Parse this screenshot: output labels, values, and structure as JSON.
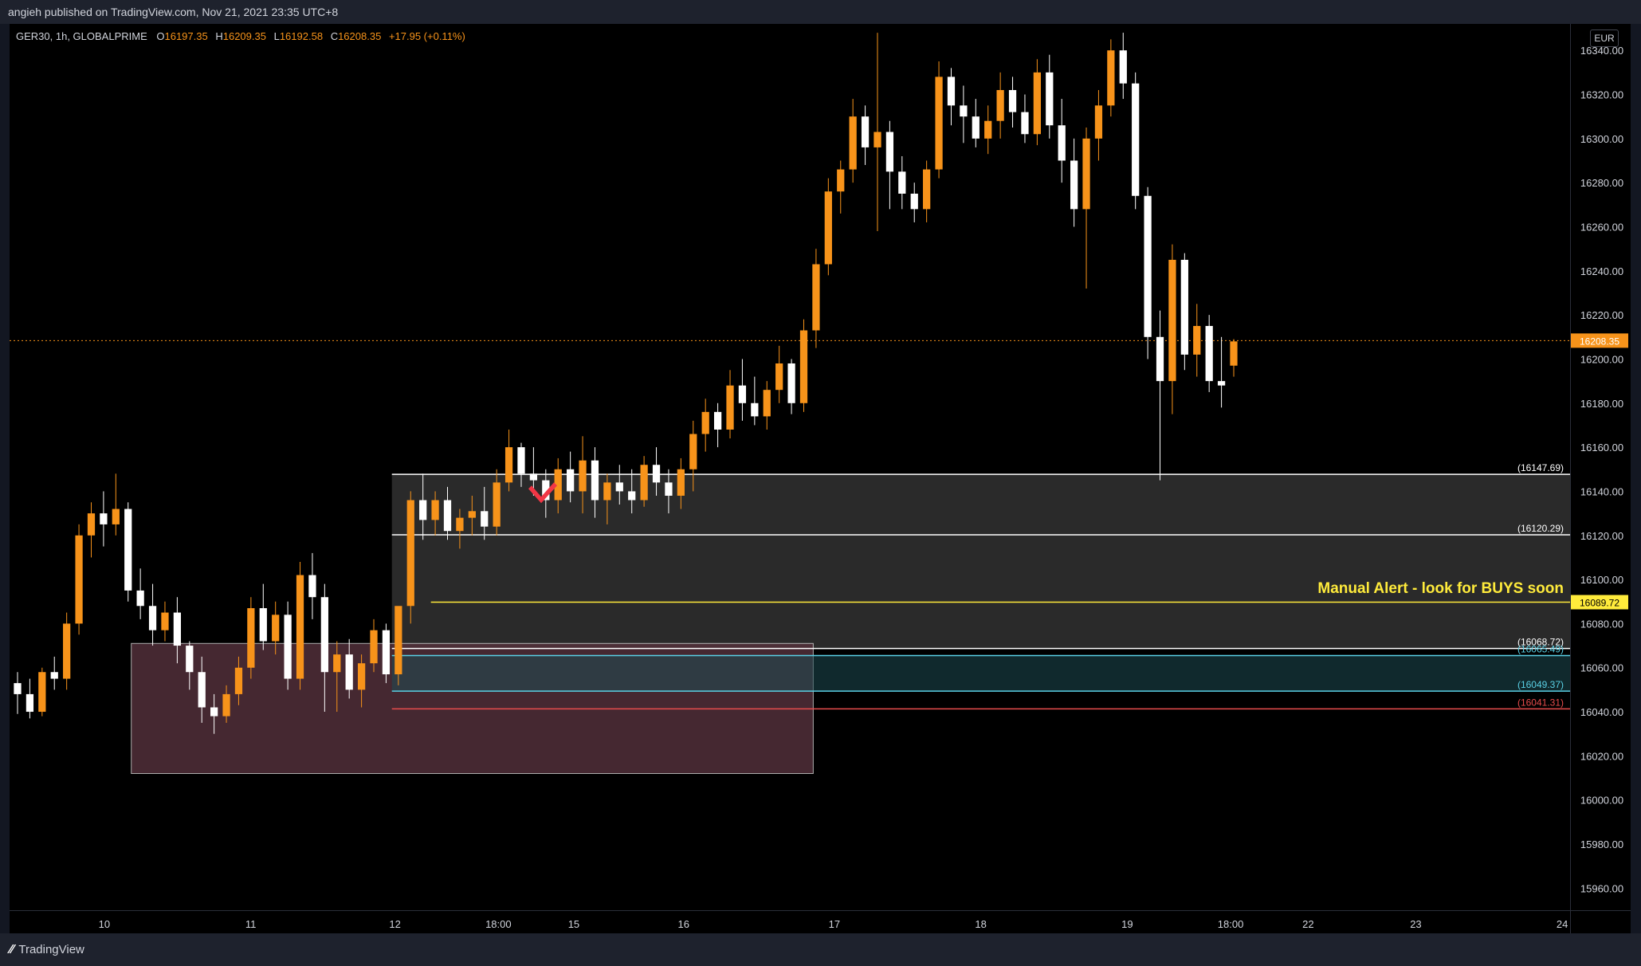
{
  "header": {
    "published": "angieh published on TradingView.com, Nov 21, 2021 23:35 UTC+8"
  },
  "legend": {
    "symbol": "GER30, 1h, GLOBALPRIME",
    "o_label": "O",
    "o_value": "16197.35",
    "h_label": "H",
    "h_value": "16209.35",
    "l_label": "L",
    "l_value": "16192.58",
    "c_label": "C",
    "c_value": "16208.35",
    "change": "+17.95 (+0.11%)"
  },
  "currency": "EUR",
  "footer": {
    "brand": "TradingView"
  },
  "colors": {
    "up": "#f7931a",
    "down": "#ffffff",
    "background": "#000000",
    "alert": "#ffeb3b",
    "support": "#5ad1e6",
    "stop": "#e84c4c"
  },
  "chart_data": {
    "type": "candlestick",
    "y_range": [
      15950,
      16352
    ],
    "y_ticks": [
      "16340.00",
      "16320.00",
      "16300.00",
      "16280.00",
      "16260.00",
      "16240.00",
      "16220.00",
      "16200.00",
      "16180.00",
      "16160.00",
      "16140.00",
      "16120.00",
      "16100.00",
      "16080.00",
      "16060.00",
      "16040.00",
      "16020.00",
      "16000.00",
      "15980.00",
      "15960.00"
    ],
    "x_ticks": [
      "10",
      "11",
      "12",
      "18:00",
      "15",
      "16",
      "17",
      "18",
      "19",
      "18:00",
      "22",
      "23",
      "24"
    ],
    "last_price": {
      "value": 16208.35,
      "label": "16208.35"
    },
    "levels": [
      {
        "value": 16147.69,
        "label": "(16147.69)",
        "color": "#ffffff"
      },
      {
        "value": 16120.29,
        "label": "(16120.29)",
        "color": "#ffffff"
      },
      {
        "value": 16089.72,
        "label": "16089.72",
        "color": "#ffeb3b"
      },
      {
        "value": 16068.72,
        "label": "(16068.72)",
        "color": "#ffffff"
      },
      {
        "value": 16065.49,
        "label": "(16065.49)",
        "color": "#5ad1e6"
      },
      {
        "value": 16049.37,
        "label": "(16049.37)",
        "color": "#5ad1e6"
      },
      {
        "value": 16041.31,
        "label": "(16041.31)",
        "color": "#e84c4c"
      }
    ],
    "zones": [
      {
        "name": "supply-zone",
        "x_from": 0.245,
        "x_to": 1.0,
        "y_from": 16068.72,
        "y_to": 16147.69,
        "color": "#2a2a2a"
      },
      {
        "name": "demand-box",
        "x_from": 0.078,
        "x_to": 0.515,
        "y_from": 16012,
        "y_to": 16071,
        "color": "#52303a"
      }
    ],
    "annotation": {
      "text": "Manual Alert - look for BUYS soon",
      "value": 16096
    },
    "candles": [
      [
        16053,
        16058,
        16039,
        16048
      ],
      [
        16048,
        16055,
        16037,
        16040
      ],
      [
        16040,
        16060,
        16038,
        16058
      ],
      [
        16058,
        16065,
        16050,
        16055
      ],
      [
        16055,
        16085,
        16050,
        16080
      ],
      [
        16080,
        16125,
        16075,
        16120
      ],
      [
        16120,
        16135,
        16110,
        16130
      ],
      [
        16130,
        16140,
        16115,
        16125
      ],
      [
        16125,
        16148,
        16120,
        16132
      ],
      [
        16132,
        16135,
        16090,
        16095
      ],
      [
        16095,
        16105,
        16082,
        16088
      ],
      [
        16088,
        16098,
        16070,
        16077
      ],
      [
        16077,
        16090,
        16072,
        16085
      ],
      [
        16085,
        16092,
        16062,
        16070
      ],
      [
        16070,
        16072,
        16050,
        16058
      ],
      [
        16058,
        16065,
        16035,
        16042
      ],
      [
        16042,
        16048,
        16030,
        16038
      ],
      [
        16038,
        16052,
        16035,
        16048
      ],
      [
        16048,
        16065,
        16043,
        16060
      ],
      [
        16060,
        16092,
        16055,
        16087
      ],
      [
        16087,
        16098,
        16068,
        16072
      ],
      [
        16072,
        16090,
        16066,
        16084
      ],
      [
        16084,
        16090,
        16050,
        16055
      ],
      [
        16055,
        16108,
        16050,
        16102
      ],
      [
        16102,
        16112,
        16082,
        16092
      ],
      [
        16092,
        16098,
        16040,
        16058
      ],
      [
        16058,
        16072,
        16040,
        16066
      ],
      [
        16066,
        16073,
        16046,
        16050
      ],
      [
        16050,
        16066,
        16042,
        16062
      ],
      [
        16062,
        16082,
        16058,
        16077
      ],
      [
        16077,
        16080,
        16053,
        16057
      ],
      [
        16057,
        16084,
        16052,
        16088
      ],
      [
        16088,
        16140,
        16080,
        16136
      ],
      [
        16136,
        16148,
        16118,
        16127
      ],
      [
        16127,
        16140,
        16120,
        16136
      ],
      [
        16136,
        16142,
        16118,
        16122
      ],
      [
        16122,
        16132,
        16114,
        16128
      ],
      [
        16128,
        16138,
        16120,
        16131
      ],
      [
        16131,
        16142,
        16118,
        16124
      ],
      [
        16124,
        16150,
        16120,
        16144
      ],
      [
        16144,
        16168,
        16140,
        16160
      ],
      [
        16160,
        16162,
        16142,
        16148
      ],
      [
        16148,
        16160,
        16138,
        16145
      ],
      [
        16145,
        16150,
        16128,
        16136
      ],
      [
        16136,
        16155,
        16130,
        16150
      ],
      [
        16150,
        16158,
        16135,
        16140
      ],
      [
        16140,
        16165,
        16130,
        16154
      ],
      [
        16154,
        16160,
        16128,
        16136
      ],
      [
        16136,
        16148,
        16125,
        16144
      ],
      [
        16144,
        16152,
        16134,
        16140
      ],
      [
        16140,
        16150,
        16130,
        16136
      ],
      [
        16136,
        16156,
        16133,
        16152
      ],
      [
        16152,
        16160,
        16138,
        16144
      ],
      [
        16144,
        16150,
        16130,
        16138
      ],
      [
        16138,
        16155,
        16132,
        16150
      ],
      [
        16150,
        16172,
        16140,
        16166
      ],
      [
        16166,
        16182,
        16158,
        16176
      ],
      [
        16176,
        16180,
        16160,
        16168
      ],
      [
        16168,
        16195,
        16164,
        16188
      ],
      [
        16188,
        16200,
        16172,
        16180
      ],
      [
        16180,
        16192,
        16170,
        16174
      ],
      [
        16174,
        16190,
        16168,
        16186
      ],
      [
        16186,
        16206,
        16180,
        16198
      ],
      [
        16198,
        16200,
        16175,
        16180
      ],
      [
        16180,
        16218,
        16176,
        16213
      ],
      [
        16213,
        16250,
        16205,
        16243
      ],
      [
        16243,
        16282,
        16238,
        16276
      ],
      [
        16276,
        16290,
        16266,
        16286
      ],
      [
        16286,
        16318,
        16280,
        16310
      ],
      [
        16310,
        16315,
        16288,
        16296
      ],
      [
        16296,
        16348,
        16258,
        16303
      ],
      [
        16303,
        16308,
        16268,
        16285
      ],
      [
        16285,
        16292,
        16268,
        16275
      ],
      [
        16275,
        16280,
        16262,
        16268
      ],
      [
        16268,
        16290,
        16262,
        16286
      ],
      [
        16286,
        16335,
        16282,
        16328
      ],
      [
        16328,
        16332,
        16306,
        16315
      ],
      [
        16315,
        16324,
        16298,
        16310
      ],
      [
        16310,
        16318,
        16296,
        16300
      ],
      [
        16300,
        16315,
        16293,
        16308
      ],
      [
        16308,
        16330,
        16300,
        16322
      ],
      [
        16322,
        16328,
        16305,
        16312
      ],
      [
        16312,
        16320,
        16298,
        16302
      ],
      [
        16302,
        16336,
        16297,
        16330
      ],
      [
        16330,
        16338,
        16300,
        16306
      ],
      [
        16306,
        16318,
        16280,
        16290
      ],
      [
        16290,
        16300,
        16260,
        16268
      ],
      [
        16268,
        16305,
        16232,
        16300
      ],
      [
        16300,
        16322,
        16290,
        16315
      ],
      [
        16315,
        16345,
        16310,
        16340
      ],
      [
        16340,
        16348,
        16318,
        16325
      ],
      [
        16325,
        16330,
        16268,
        16274
      ],
      [
        16274,
        16278,
        16200,
        16210
      ],
      [
        16210,
        16222,
        16145,
        16190
      ],
      [
        16190,
        16252,
        16175,
        16245
      ],
      [
        16245,
        16248,
        16195,
        16202
      ],
      [
        16202,
        16225,
        16192,
        16215
      ],
      [
        16215,
        16220,
        16185,
        16190
      ],
      [
        16190,
        16210,
        16178,
        16188
      ],
      [
        16197,
        16209,
        16192,
        16208
      ]
    ]
  }
}
